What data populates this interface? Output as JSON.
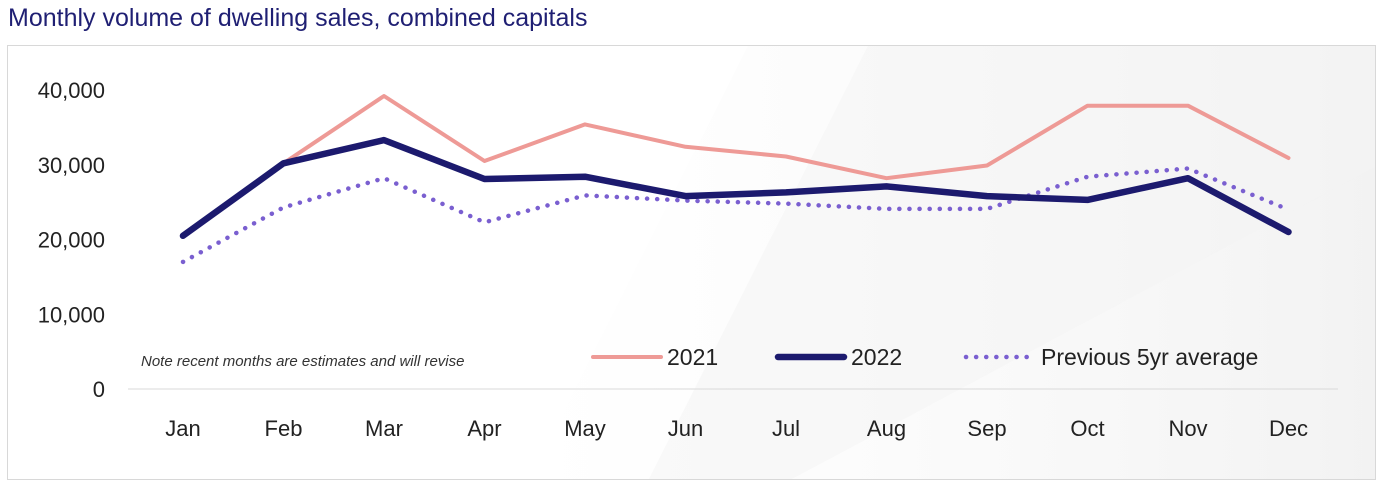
{
  "chart_data": {
    "type": "line",
    "title": "Monthly volume of dwelling sales, combined capitals",
    "xlabel": "",
    "ylabel": "",
    "categories": [
      "Jan",
      "Feb",
      "Mar",
      "Apr",
      "May",
      "Jun",
      "Jul",
      "Aug",
      "Sep",
      "Oct",
      "Nov",
      "Dec"
    ],
    "ylim": [
      0,
      40000
    ],
    "yticks": [
      0,
      10000,
      20000,
      30000,
      40000
    ],
    "ytick_labels": [
      "0",
      "10,000",
      "20,000",
      "30,000",
      "40,000"
    ],
    "grid": false,
    "legend_position": "bottom-right",
    "annotation": "Note recent months are estimates and will revise",
    "series": [
      {
        "name": "2021",
        "color": "#ee9a96",
        "style": "solid-thin",
        "values": [
          null,
          30200,
          39200,
          30500,
          35400,
          32400,
          31100,
          28200,
          29900,
          37900,
          37900,
          30900
        ]
      },
      {
        "name": "2022",
        "color": "#1c1a6e",
        "style": "solid-thick",
        "values": [
          20500,
          30200,
          33300,
          28100,
          28400,
          25800,
          26300,
          27100,
          25800,
          25300,
          28200,
          21000
        ]
      },
      {
        "name": "Previous 5yr average",
        "color": "#7a5fd0",
        "style": "dotted",
        "values": [
          17000,
          24300,
          28200,
          22300,
          25900,
          25200,
          24800,
          24100,
          24100,
          28400,
          29500,
          24000
        ]
      }
    ]
  }
}
